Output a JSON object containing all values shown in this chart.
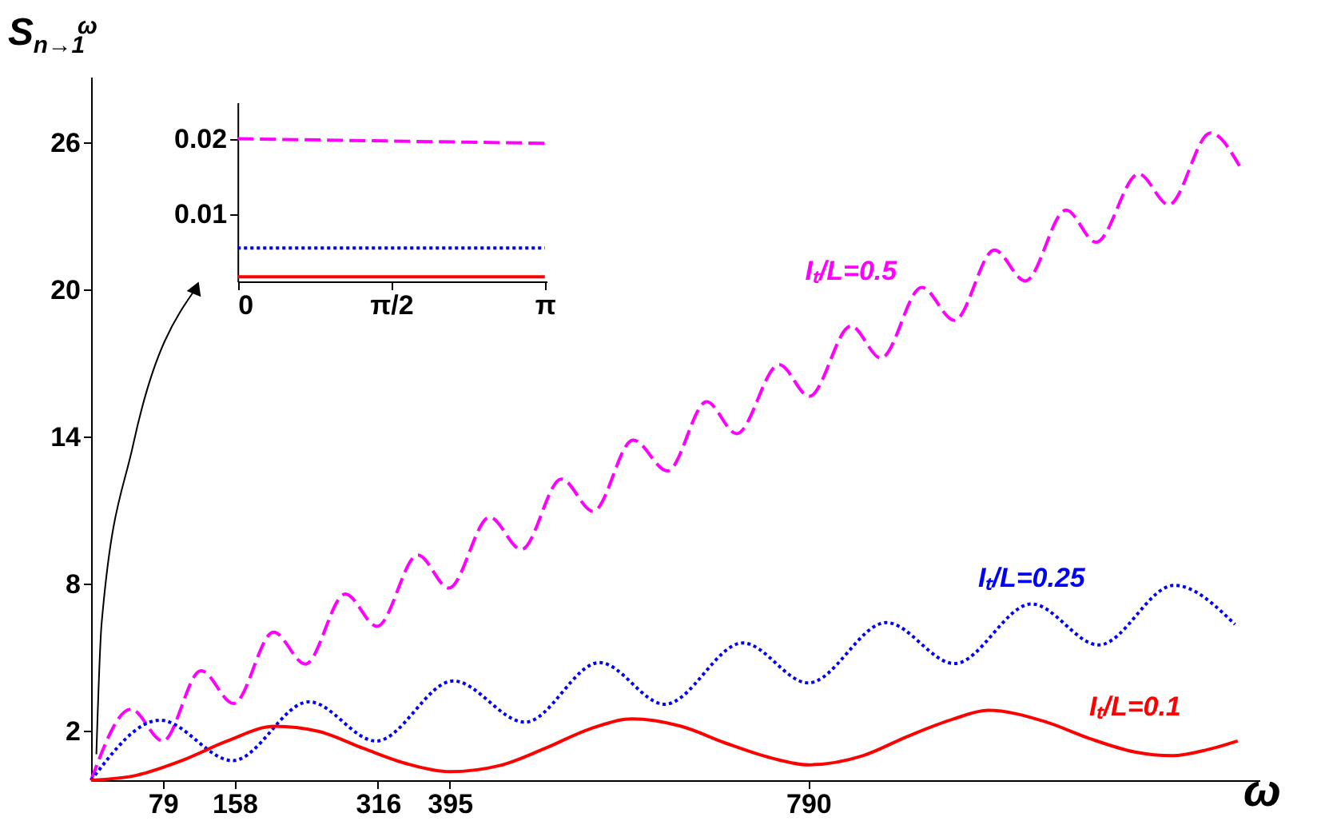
{
  "chart_data": [
    {
      "type": "line",
      "xlabel": "ω",
      "ylabel": "S$_{n→1}$$^{ω}$",
      "xlim": [
        0,
        1287
      ],
      "ylim": [
        0,
        28.7
      ],
      "xticks": [
        79,
        158,
        316,
        395,
        790
      ],
      "yticks": [
        2,
        8,
        14,
        20,
        26
      ],
      "grid": false,
      "series": [
        {
          "name": "Iₜ/L=0.5",
          "color": "#ff00ff",
          "line_style": "dashed",
          "x": [
            0,
            44,
            79,
            121,
            157,
            201,
            236,
            280,
            315,
            360,
            394,
            439,
            474,
            518,
            553,
            597,
            635,
            678,
            711,
            758,
            791,
            837,
            870,
            915,
            951,
            995,
            1029,
            1074,
            1107,
            1154,
            1187,
            1233,
            1265
          ],
          "values": [
            0,
            2.9,
            1.6,
            4.47,
            3.13,
            6.04,
            4.74,
            7.6,
            6.28,
            9.19,
            7.84,
            10.73,
            9.41,
            12.29,
            10.97,
            13.88,
            12.62,
            15.44,
            14.14,
            16.96,
            15.66,
            18.53,
            17.22,
            20.11,
            18.76,
            21.63,
            20.37,
            23.26,
            21.95,
            24.74,
            23.48,
            26.41,
            25.06
          ]
        },
        {
          "name": "Iₜ/L=0.25",
          "color": "#0000ff",
          "line_style": "dotted",
          "x": [
            0,
            76,
            156,
            240,
            314,
            399,
            478,
            560,
            632,
            718,
            790,
            876,
            951,
            1036,
            1110,
            1193,
            1260
          ],
          "values": [
            0,
            2.45,
            0.8,
            3.2,
            1.6,
            4.05,
            2.37,
            4.8,
            3.1,
            5.6,
            3.97,
            6.43,
            4.76,
            7.19,
            5.52,
            7.95,
            6.36
          ]
        },
        {
          "name": "Iₜ/L=0.1",
          "color": "#ff0000",
          "line_style": "solid",
          "x": [
            0,
            50,
            100,
            150,
            202,
            250,
            300,
            350,
            395,
            450,
            500,
            550,
            596,
            650,
            700,
            750,
            790,
            850,
            900,
            950,
            988,
            1050,
            1100,
            1150,
            1191,
            1230,
            1263
          ],
          "values": [
            0,
            0.2,
            0.8,
            1.6,
            2.2,
            2.0,
            1.3,
            0.65,
            0.35,
            0.6,
            1.3,
            2.1,
            2.5,
            2.2,
            1.5,
            0.9,
            0.63,
            1.0,
            1.8,
            2.5,
            2.85,
            2.4,
            1.7,
            1.15,
            1.0,
            1.25,
            1.6
          ]
        }
      ]
    },
    {
      "type": "line",
      "xlim": [
        0,
        3.16
      ],
      "ylim": [
        0.0012,
        0.0248
      ],
      "xticks": [
        0,
        {
          "value": 1.5708,
          "label": "π/2"
        },
        {
          "value": 3.1416,
          "label": "π"
        }
      ],
      "yticks": [
        0.01,
        0.02
      ],
      "grid": false,
      "series": [
        {
          "color": "#ff00ff",
          "line_style": "dashed",
          "x": [
            0,
            3.1416
          ],
          "values": [
            0.02,
            0.0194
          ]
        },
        {
          "color": "#0000ff",
          "line_style": "dotted",
          "x": [
            0,
            3.1416
          ],
          "values": [
            0.0056,
            0.0056
          ]
        },
        {
          "color": "#ff0000",
          "line_style": "solid",
          "x": [
            0,
            3.1416
          ],
          "values": [
            0.0018,
            0.0018
          ]
        }
      ]
    }
  ]
}
